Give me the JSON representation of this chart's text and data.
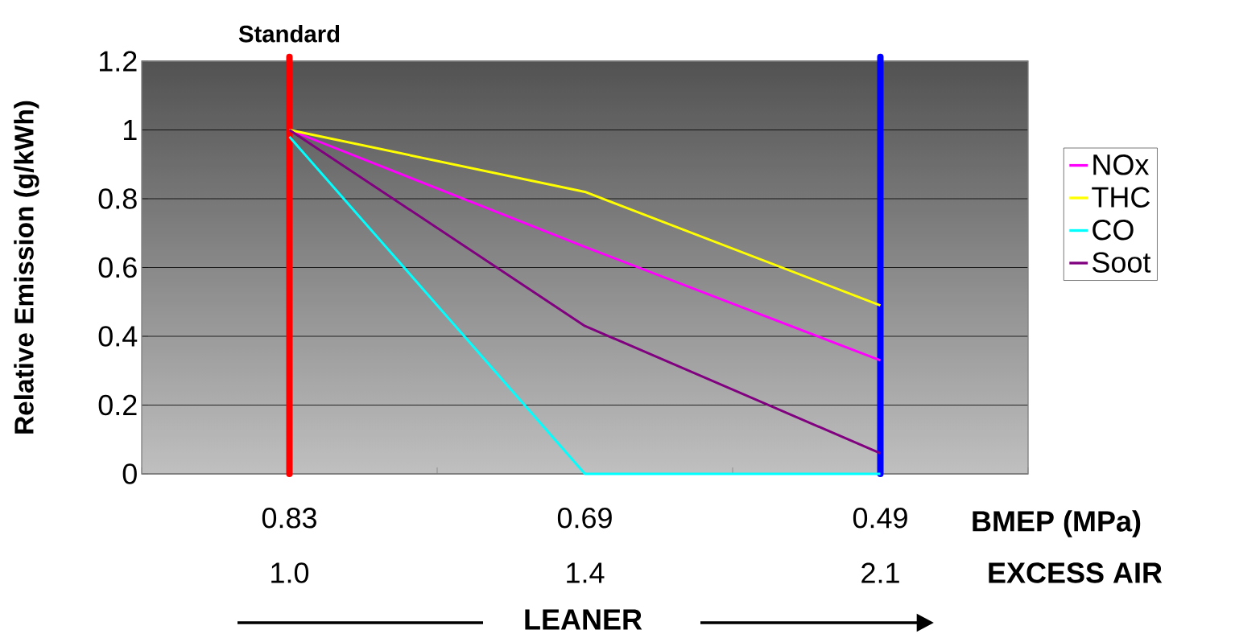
{
  "chart_data": {
    "type": "line",
    "ylabel": "Relative Emission (g/kWh)",
    "categories": [
      "0.83",
      "0.69",
      "0.49"
    ],
    "series": [
      {
        "name": "NOx",
        "color": "#ff00ff",
        "values": [
          1,
          0.66,
          0.33
        ]
      },
      {
        "name": "THC",
        "color": "#ffff00",
        "values": [
          1,
          0.82,
          0.49
        ]
      },
      {
        "name": "CO",
        "color": "#00ffff",
        "values": [
          0.98,
          0,
          0
        ]
      },
      {
        "name": "Soot",
        "color": "#800080",
        "values": [
          1,
          0.43,
          0.06
        ]
      }
    ],
    "ylim": [
      0,
      1.2
    ],
    "yticks": [
      0,
      0.2,
      0.4,
      0.6,
      0.8,
      1,
      1.2
    ],
    "grid": "y",
    "legend": "right",
    "marker": "none",
    "line_style": "solid",
    "ref_lines": [
      {
        "axis": "x",
        "value": "0.83",
        "label": "Standard",
        "color": "#ff0000"
      },
      {
        "axis": "x",
        "value": "0.49",
        "color": "#0000ff"
      }
    ],
    "annotations": [
      "1.0",
      "1.4",
      "2.1",
      "BMEP (MPa)",
      "EXCESS AIR",
      "LEANER"
    ]
  }
}
